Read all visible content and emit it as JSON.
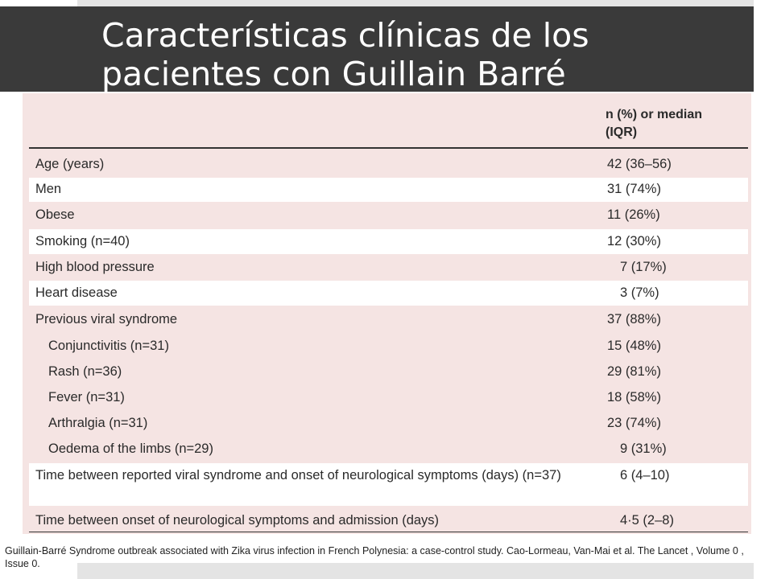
{
  "title": "Características clínicas de los pacientes con Guillain Barré",
  "table": {
    "header": "n (%) or median\n(IQR)",
    "rows": [
      {
        "label": "Age (years)",
        "value": "42 (36–56)"
      },
      {
        "label": "Men",
        "value": "31 (74%)"
      },
      {
        "label": "Obese",
        "value": "11 (26%)"
      },
      {
        "label": "Smoking (n=40)",
        "value": "12 (30%)"
      },
      {
        "label": "High blood pressure",
        "value": "7 (17%)"
      },
      {
        "label": "Heart disease",
        "value": "3 (7%)"
      },
      {
        "label": "Previous viral syndrome",
        "value": "37 (88%)"
      },
      {
        "label": "Conjunctivitis (n=31)",
        "value": "15 (48%)"
      },
      {
        "label": "Rash (n=36)",
        "value": "29 (81%)"
      },
      {
        "label": "Fever (n=31)",
        "value": "18 (58%)"
      },
      {
        "label": "Arthralgia (n=31)",
        "value": "23 (74%)"
      },
      {
        "label": "Oedema of the limbs (n=29)",
        "value": "9 (31%)"
      },
      {
        "label": "Time between reported viral syndrome and onset of neurological symptoms (days) (n=37)",
        "value": "6 (4–10)"
      },
      {
        "label": "Time between onset of neurological symptoms and admission (days)",
        "value": "4·5 (2–8)"
      }
    ]
  },
  "citation": "Guillain-Barré Syndrome outbreak associated with Zika virus infection in French Polynesia: a case-control study. Cao-Lormeau, Van-Mai et al. The Lancet , Volume 0 , Issue 0."
}
